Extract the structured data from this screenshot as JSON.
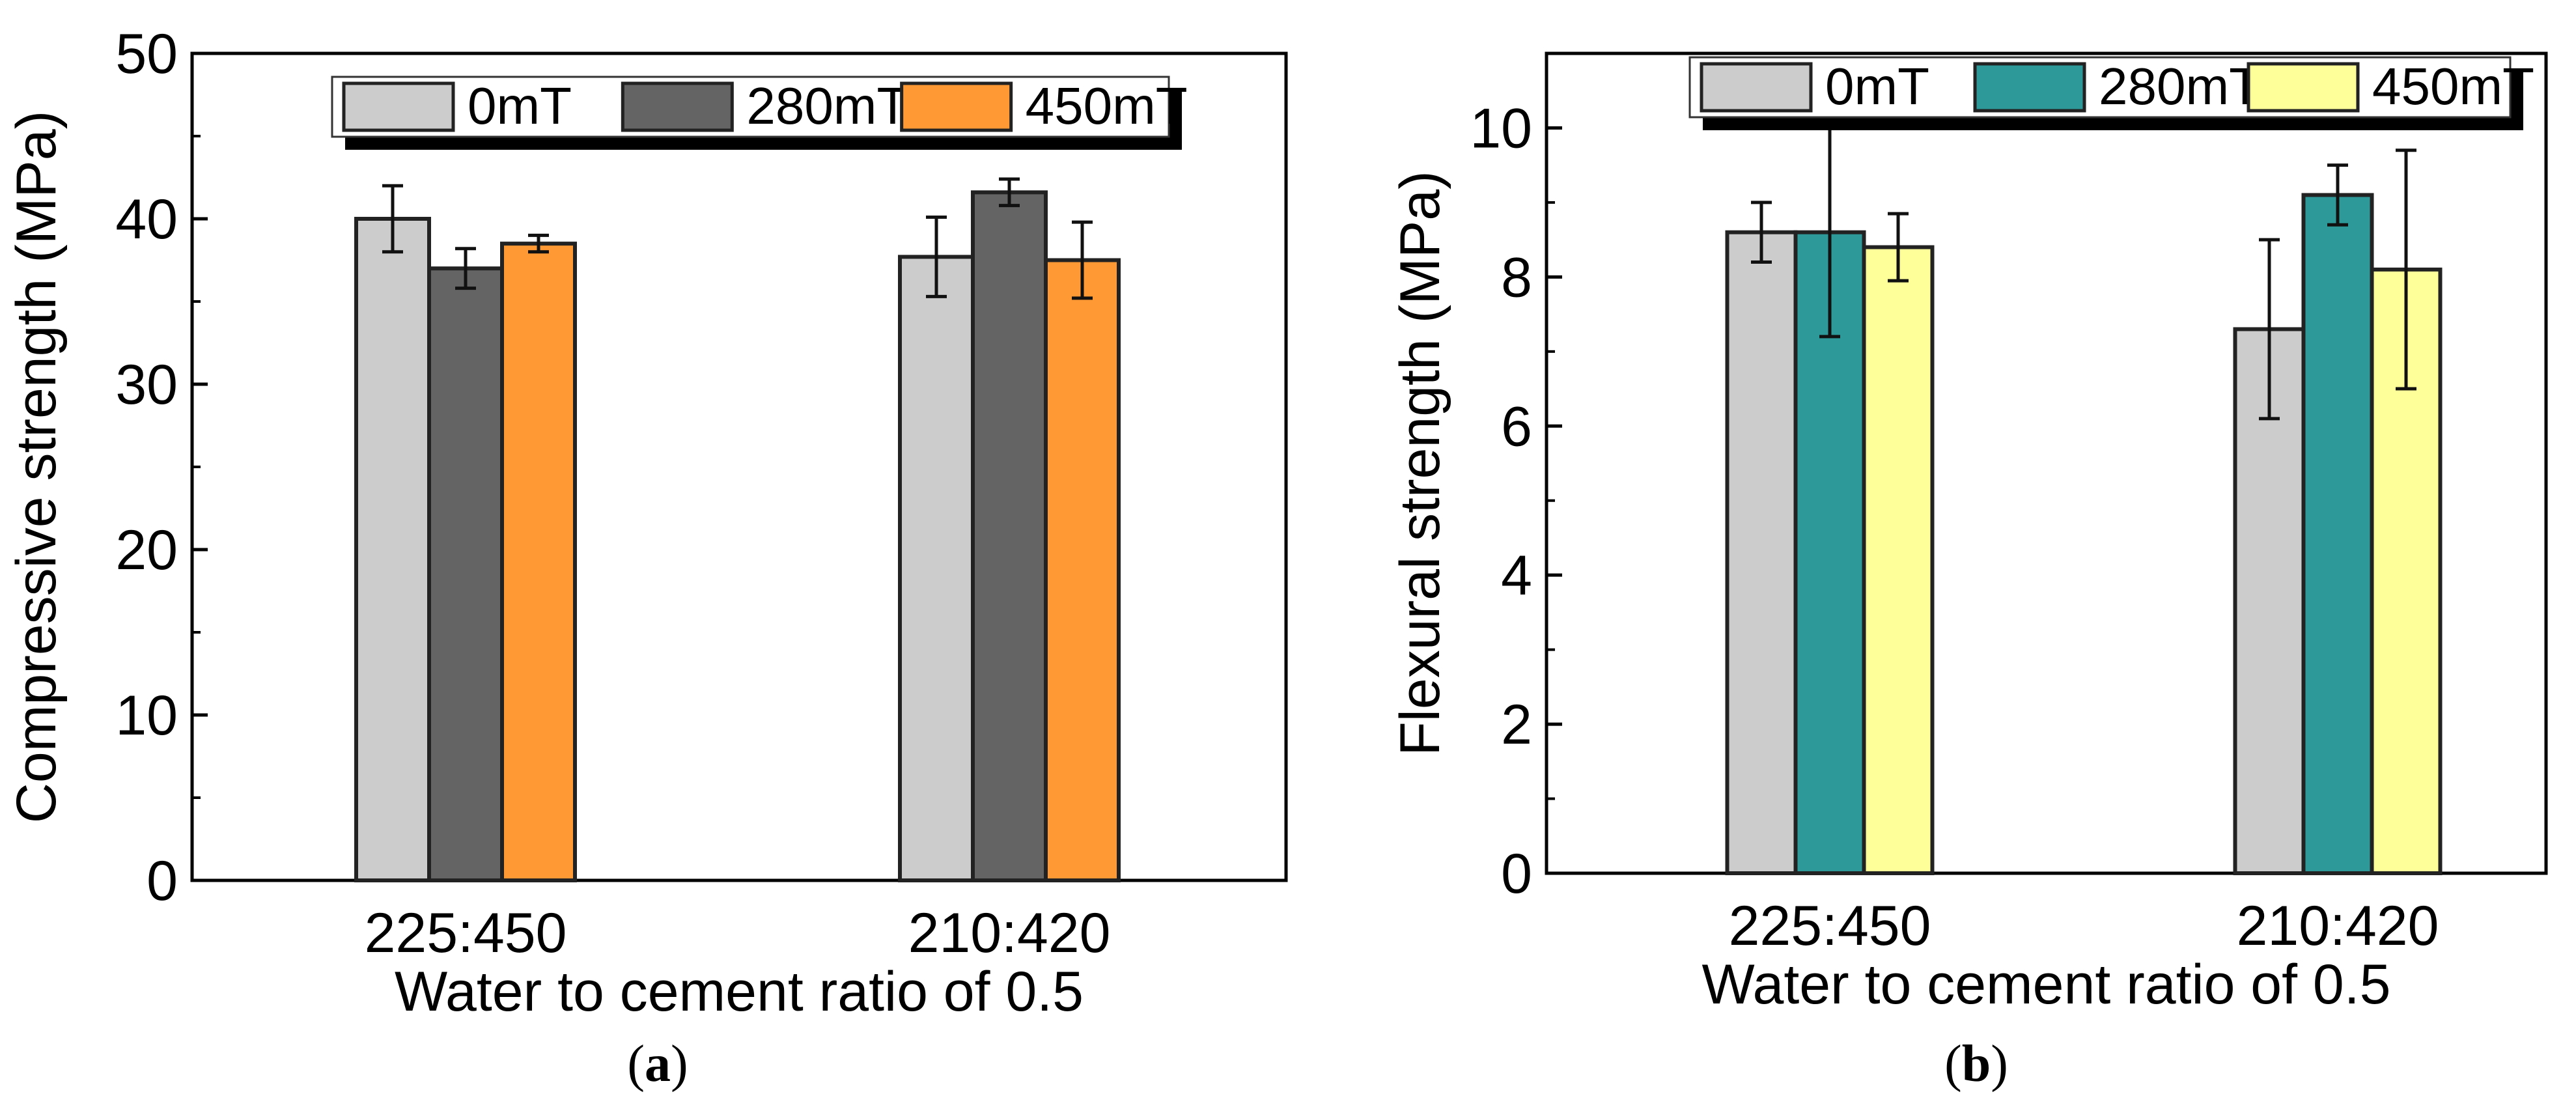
{
  "chart_data": [
    {
      "type": "bar",
      "panel_label": "a",
      "xlabel": "Water to cement ratio of 0.5",
      "ylabel": "Compressive strength (MPa)",
      "ylim": [
        0,
        50
      ],
      "yticks": [
        "0",
        "10",
        "20",
        "30",
        "40",
        "50"
      ],
      "categories": [
        "225:450",
        "210:420"
      ],
      "legend_position": "top",
      "grid": false,
      "series": [
        {
          "name": "0mT",
          "color": "#cccccc",
          "values": [
            40.0,
            37.7
          ],
          "errors": [
            2.0,
            2.4
          ]
        },
        {
          "name": "280mT",
          "color": "#646464",
          "values": [
            37.0,
            41.6
          ],
          "errors": [
            1.2,
            0.8
          ]
        },
        {
          "name": "450mT",
          "color": "#ff9933",
          "values": [
            38.5,
            37.5
          ],
          "errors": [
            0.5,
            2.3
          ]
        }
      ]
    },
    {
      "type": "bar",
      "panel_label": "b",
      "xlabel": "Water to cement ratio of 0.5",
      "ylabel": "Flexural strength (MPa)",
      "ylim": [
        0,
        11
      ],
      "yticks": [
        "0",
        "2",
        "4",
        "6",
        "8",
        "10"
      ],
      "categories": [
        "225:450",
        "210:420"
      ],
      "legend_position": "top",
      "grid": false,
      "series": [
        {
          "name": "0mT",
          "color": "#cccccc",
          "values": [
            8.6,
            7.3
          ],
          "errors": [
            0.4,
            1.2
          ]
        },
        {
          "name": "280mT",
          "color": "#2e9999",
          "values": [
            8.6,
            9.1
          ],
          "errors": [
            1.4,
            0.4
          ]
        },
        {
          "name": "450mT",
          "color": "#ffff99",
          "values": [
            8.4,
            8.1
          ],
          "errors": [
            0.45,
            1.6
          ]
        }
      ]
    }
  ]
}
